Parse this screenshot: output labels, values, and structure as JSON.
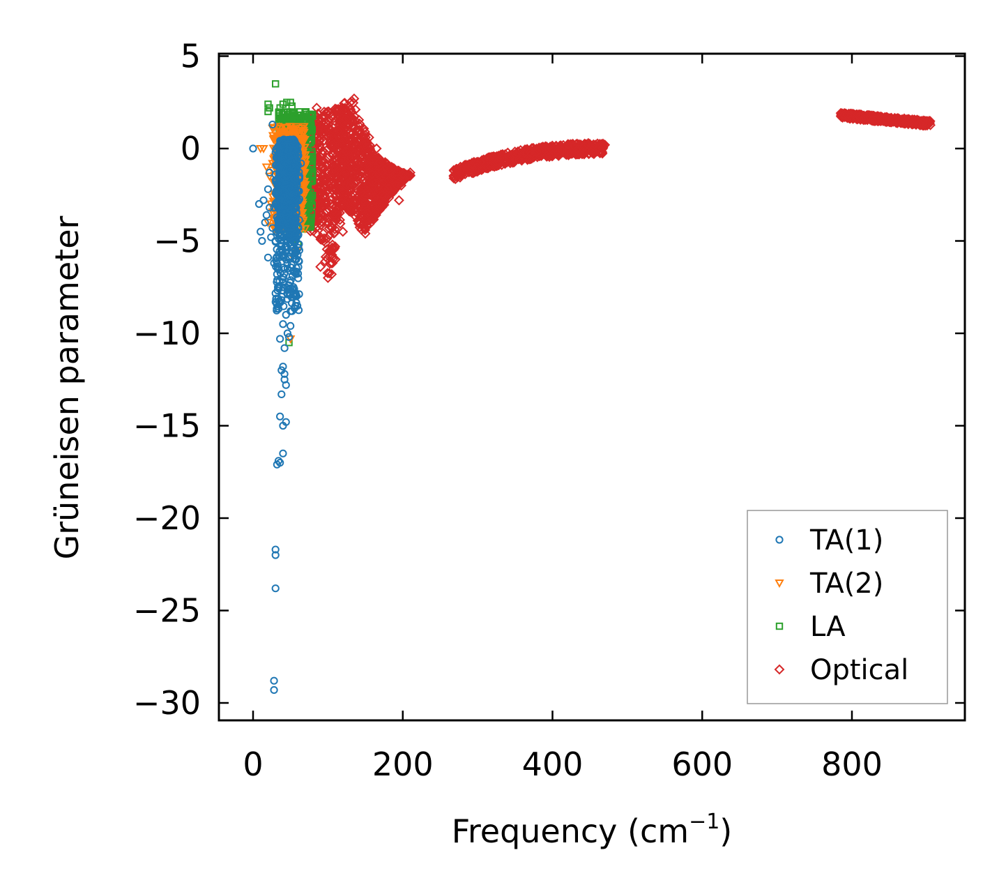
{
  "chart_data": {
    "type": "scatter",
    "xlabel": "Frequency (cm",
    "xlabel_sup": "−1",
    "xlabel_close": ")",
    "ylabel": "Grüneisen parameter",
    "xlim": [
      -45,
      950
    ],
    "ylim": [
      -31,
      5.3
    ],
    "xticks": [
      0,
      200,
      400,
      600,
      800
    ],
    "xtick_labels": [
      "0",
      "200",
      "400",
      "600",
      "800"
    ],
    "yticks": [
      5,
      0,
      -5,
      -10,
      -15,
      -20,
      -25,
      -30
    ],
    "ytick_labels": [
      "5",
      "0",
      "−5",
      "−10",
      "−15",
      "−20",
      "−25",
      "−30"
    ],
    "legend_position": "lower-right",
    "series": [
      {
        "name": "TA(1)",
        "marker": "circle",
        "color": "#1f77b4",
        "points": [
          [
            0,
            0
          ],
          [
            8,
            -3
          ],
          [
            10,
            -4.5
          ],
          [
            12,
            -5
          ],
          [
            14,
            -2.8
          ],
          [
            16,
            -4
          ],
          [
            18,
            -3.6
          ],
          [
            20,
            -2.2
          ],
          [
            20,
            -5.9
          ],
          [
            22,
            -3.2
          ],
          [
            22,
            -1.3
          ],
          [
            24,
            -4.8
          ],
          [
            26,
            -4.3
          ],
          [
            26,
            1.3
          ],
          [
            28,
            -3.2
          ],
          [
            28,
            -6.2
          ],
          [
            30,
            -0.2
          ],
          [
            30,
            -1.4
          ],
          [
            30,
            -5
          ],
          [
            32,
            -2.5
          ],
          [
            32,
            -6.8
          ],
          [
            34,
            -0.5
          ],
          [
            34,
            -3.8
          ],
          [
            36,
            -10.3
          ],
          [
            36,
            -14.5
          ],
          [
            36,
            -17
          ],
          [
            38,
            -8.2
          ],
          [
            38,
            -12
          ],
          [
            38,
            -13.3
          ],
          [
            40,
            -15
          ],
          [
            40,
            -16.5
          ],
          [
            40,
            -9.5
          ],
          [
            40,
            -11.8
          ],
          [
            42,
            -12.5
          ],
          [
            42,
            -10.8
          ],
          [
            42,
            -12.2
          ],
          [
            44,
            -14.8
          ],
          [
            44,
            -9
          ],
          [
            44,
            -12.8
          ],
          [
            46,
            -10
          ],
          [
            46,
            -6.5
          ],
          [
            48,
            -10.2
          ],
          [
            50,
            -9.6
          ],
          [
            52,
            -8.8
          ],
          [
            54,
            -7.5
          ],
          [
            56,
            -6
          ],
          [
            58,
            -3.5
          ],
          [
            60,
            -2.8
          ],
          [
            62,
            -1.5
          ],
          [
            64,
            -0.8
          ],
          [
            30,
            -21.7
          ],
          [
            30,
            -22
          ],
          [
            30,
            -23.8
          ],
          [
            28,
            -28.8
          ],
          [
            28,
            -29.3
          ],
          [
            32,
            -17.1
          ],
          [
            34,
            -16.9
          ]
        ],
        "clusters": [
          [
            30,
            62,
            -9,
            0.2,
            380
          ],
          [
            34,
            58,
            -5,
            0.5,
            320
          ],
          [
            40,
            56,
            -3,
            0.5,
            200
          ]
        ]
      },
      {
        "name": "TA(2)",
        "marker": "triangle-down",
        "color": "#ff7f0e",
        "points": [
          [
            10,
            0
          ],
          [
            14,
            0
          ],
          [
            18,
            -1
          ],
          [
            20,
            -4
          ],
          [
            22,
            -1.5
          ],
          [
            24,
            -3
          ],
          [
            26,
            1.1
          ],
          [
            28,
            0.5
          ],
          [
            30,
            -0.8
          ],
          [
            60,
            -5.5
          ],
          [
            62,
            -4.2
          ],
          [
            64,
            -3
          ],
          [
            50,
            -10.3
          ],
          [
            55,
            -6
          ],
          [
            58,
            -5.6
          ],
          [
            66,
            -1
          ]
        ],
        "clusters": [
          [
            26,
            70,
            -4.5,
            1.2,
            420
          ]
        ]
      },
      {
        "name": "LA",
        "marker": "square",
        "color": "#2ca02c",
        "points": [
          [
            30,
            3.5
          ],
          [
            20,
            2.4
          ],
          [
            22,
            2.2
          ],
          [
            20,
            2.0
          ],
          [
            45,
            2.5
          ],
          [
            50,
            2.5
          ],
          [
            52,
            2.3
          ],
          [
            40,
            2.4
          ],
          [
            36,
            2.2
          ],
          [
            55,
            1.8
          ],
          [
            48,
            -10.5
          ],
          [
            60,
            -5.2
          ],
          [
            70,
            -4
          ],
          [
            72,
            -1.5
          ],
          [
            75,
            -0.5
          ],
          [
            68,
            -2.8
          ]
        ],
        "clusters": [
          [
            34,
            80,
            -4.5,
            2.0,
            480
          ]
        ]
      },
      {
        "name": "Optical",
        "marker": "diamond",
        "color": "#d62728",
        "points": [
          [
            470,
            0.2
          ],
          [
            130,
            2.5
          ],
          [
            135,
            2.7
          ],
          [
            100,
            2.0
          ],
          [
            85,
            2.2
          ],
          [
            155,
            0.6
          ],
          [
            165,
            0
          ],
          [
            195,
            -2.8
          ],
          [
            198,
            -2.0
          ],
          [
            200,
            -1.4
          ],
          [
            210,
            -1.3
          ],
          [
            100,
            -7
          ],
          [
            105,
            -6.8
          ],
          [
            110,
            -6
          ],
          [
            90,
            -6.4
          ],
          [
            150,
            -4.6
          ],
          [
            145,
            -4.4
          ],
          [
            120,
            -4.5
          ],
          [
            120,
            -3.1
          ],
          [
            268,
            -1.5
          ],
          [
            272,
            -1.2
          ]
        ]
      }
    ]
  }
}
